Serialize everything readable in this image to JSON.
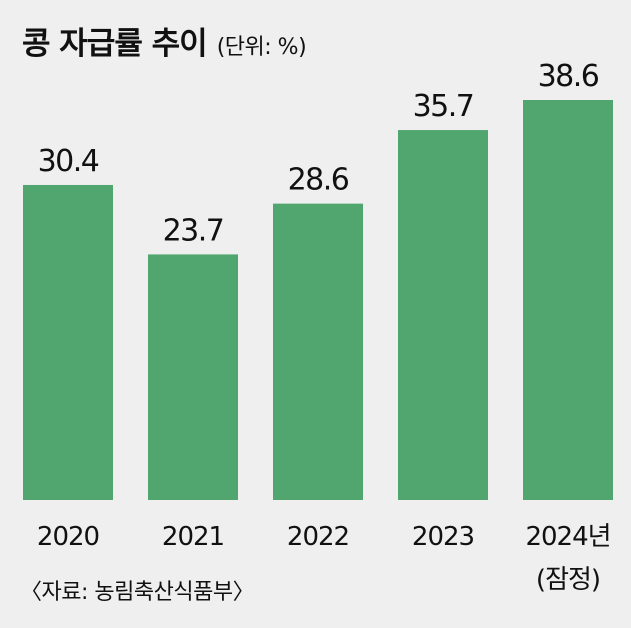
{
  "header": {
    "title": "콩 자급률 추이",
    "subtitle": "(단위: %)"
  },
  "source": "〈자료: 농림축산식품부〉",
  "colors": {
    "bar": "#51a66f",
    "background": "#efefef",
    "text": "#111111"
  },
  "chart_data": {
    "type": "bar",
    "title": "콩 자급률 추이",
    "unit": "%",
    "categories": [
      "2020",
      "2021",
      "2022",
      "2023",
      "2024년"
    ],
    "category_notes": [
      "",
      "",
      "",
      "",
      "(잠정)"
    ],
    "values": [
      30.4,
      23.7,
      28.6,
      35.7,
      38.6
    ],
    "value_labels": [
      "30.4",
      "23.7",
      "28.6",
      "35.7",
      "38.6"
    ],
    "ylim": [
      0,
      38.6
    ],
    "grid": false,
    "legend": "none"
  }
}
